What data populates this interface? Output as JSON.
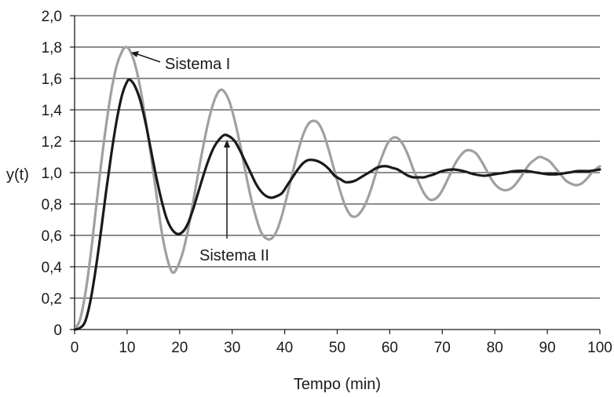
{
  "chart_data": {
    "type": "line",
    "xlabel": "Tempo (min)",
    "ylabel": "y(t)",
    "xlim": [
      0,
      100
    ],
    "ylim": [
      0,
      2.0
    ],
    "x_ticks": [
      0,
      10,
      20,
      30,
      40,
      50,
      60,
      70,
      80,
      90,
      100
    ],
    "x_tick_labels": [
      "0",
      "10",
      "20",
      "30",
      "40",
      "50",
      "60",
      "70",
      "80",
      "90",
      "100"
    ],
    "y_ticks": [
      0,
      0.2,
      0.4,
      0.6,
      0.8,
      1.0,
      1.2,
      1.4,
      1.6,
      1.8,
      2.0
    ],
    "y_tick_labels": [
      "0",
      "0,2",
      "0,4",
      "0,6",
      "0,8",
      "1,0",
      "1,2",
      "1,4",
      "1,6",
      "1,8",
      "2,0"
    ],
    "grid": "horizontal",
    "series": [
      {
        "name": "Sistema I",
        "color": "#a0a0a0",
        "points": [
          [
            0,
            0
          ],
          [
            1,
            0.06
          ],
          [
            2,
            0.22
          ],
          [
            3,
            0.46
          ],
          [
            4,
            0.75
          ],
          [
            5,
            1.04
          ],
          [
            6,
            1.3
          ],
          [
            7,
            1.52
          ],
          [
            8,
            1.68
          ],
          [
            9,
            1.77
          ],
          [
            9.7,
            1.8
          ],
          [
            10.5,
            1.78
          ],
          [
            11.5,
            1.69
          ],
          [
            12.5,
            1.54
          ],
          [
            13.5,
            1.34
          ],
          [
            14.5,
            1.12
          ],
          [
            15.5,
            0.88
          ],
          [
            16.5,
            0.64
          ],
          [
            17.5,
            0.47
          ],
          [
            18.5,
            0.37
          ],
          [
            19.3,
            0.38
          ],
          [
            20.5,
            0.48
          ],
          [
            21.5,
            0.62
          ],
          [
            22.5,
            0.8
          ],
          [
            23.5,
            0.99
          ],
          [
            24.5,
            1.17
          ],
          [
            25.5,
            1.33
          ],
          [
            26.5,
            1.45
          ],
          [
            27.5,
            1.52
          ],
          [
            28.4,
            1.52
          ],
          [
            29.5,
            1.45
          ],
          [
            30.5,
            1.33
          ],
          [
            31.5,
            1.18
          ],
          [
            32.5,
            1.01
          ],
          [
            33.5,
            0.85
          ],
          [
            34.5,
            0.72
          ],
          [
            35.5,
            0.62
          ],
          [
            36.5,
            0.58
          ],
          [
            37.5,
            0.58
          ],
          [
            38.5,
            0.63
          ],
          [
            39.5,
            0.73
          ],
          [
            40.5,
            0.86
          ],
          [
            41.5,
            1.0
          ],
          [
            42.5,
            1.13
          ],
          [
            43.5,
            1.24
          ],
          [
            44.5,
            1.31
          ],
          [
            45.5,
            1.33
          ],
          [
            46.5,
            1.31
          ],
          [
            47.5,
            1.24
          ],
          [
            48.5,
            1.13
          ],
          [
            49.5,
            1.01
          ],
          [
            50.5,
            0.89
          ],
          [
            51.5,
            0.79
          ],
          [
            52.5,
            0.73
          ],
          [
            53.5,
            0.72
          ],
          [
            54.5,
            0.75
          ],
          [
            55.5,
            0.81
          ],
          [
            56.5,
            0.9
          ],
          [
            57.5,
            1.01
          ],
          [
            58.5,
            1.1
          ],
          [
            59.5,
            1.18
          ],
          [
            60.5,
            1.22
          ],
          [
            61.5,
            1.22
          ],
          [
            62.5,
            1.18
          ],
          [
            63.5,
            1.11
          ],
          [
            64.5,
            1.02
          ],
          [
            65.5,
            0.94
          ],
          [
            66.5,
            0.87
          ],
          [
            67.5,
            0.83
          ],
          [
            68.5,
            0.83
          ],
          [
            69.5,
            0.86
          ],
          [
            70.5,
            0.92
          ],
          [
            71.5,
            0.99
          ],
          [
            72.5,
            1.06
          ],
          [
            73.5,
            1.11
          ],
          [
            74.5,
            1.14
          ],
          [
            75.5,
            1.14
          ],
          [
            76.5,
            1.12
          ],
          [
            77.5,
            1.07
          ],
          [
            78.5,
            1.01
          ],
          [
            79.5,
            0.95
          ],
          [
            80.5,
            0.91
          ],
          [
            81.5,
            0.89
          ],
          [
            82.5,
            0.89
          ],
          [
            83.5,
            0.91
          ],
          [
            84.5,
            0.95
          ],
          [
            85.5,
            1.0
          ],
          [
            86.5,
            1.05
          ],
          [
            87.5,
            1.08
          ],
          [
            88.5,
            1.1
          ],
          [
            89.5,
            1.09
          ],
          [
            90.5,
            1.07
          ],
          [
            91.5,
            1.03
          ],
          [
            92.5,
            0.99
          ],
          [
            93.5,
            0.95
          ],
          [
            94.5,
            0.93
          ],
          [
            95.5,
            0.92
          ],
          [
            96.5,
            0.93
          ],
          [
            97.5,
            0.96
          ],
          [
            98.5,
            1.0
          ],
          [
            99.5,
            1.03
          ],
          [
            100,
            1.04
          ]
        ]
      },
      {
        "name": "Sistema II",
        "color": "#1a1a1a",
        "points": [
          [
            0,
            0
          ],
          [
            1,
            0.01
          ],
          [
            2,
            0.05
          ],
          [
            3,
            0.18
          ],
          [
            4,
            0.38
          ],
          [
            5,
            0.62
          ],
          [
            6,
            0.88
          ],
          [
            7,
            1.12
          ],
          [
            8,
            1.33
          ],
          [
            9,
            1.49
          ],
          [
            10,
            1.58
          ],
          [
            10.6,
            1.59
          ],
          [
            11.5,
            1.55
          ],
          [
            12.5,
            1.46
          ],
          [
            13.5,
            1.32
          ],
          [
            14.5,
            1.15
          ],
          [
            15.5,
            0.98
          ],
          [
            16.5,
            0.83
          ],
          [
            17.5,
            0.71
          ],
          [
            18.5,
            0.64
          ],
          [
            19.5,
            0.61
          ],
          [
            20.5,
            0.62
          ],
          [
            21.5,
            0.67
          ],
          [
            22.5,
            0.76
          ],
          [
            23.5,
            0.87
          ],
          [
            24.5,
            0.98
          ],
          [
            25.5,
            1.08
          ],
          [
            26.5,
            1.16
          ],
          [
            27.5,
            1.21
          ],
          [
            28.5,
            1.24
          ],
          [
            29.5,
            1.23
          ],
          [
            30.5,
            1.2
          ],
          [
            31.5,
            1.14
          ],
          [
            32.5,
            1.07
          ],
          [
            33.5,
            1.0
          ],
          [
            34.5,
            0.93
          ],
          [
            35.5,
            0.88
          ],
          [
            36.5,
            0.85
          ],
          [
            37.5,
            0.84
          ],
          [
            38.5,
            0.85
          ],
          [
            39.5,
            0.87
          ],
          [
            40.5,
            0.92
          ],
          [
            41.5,
            0.97
          ],
          [
            42.5,
            1.02
          ],
          [
            43.5,
            1.06
          ],
          [
            44.5,
            1.08
          ],
          [
            45.5,
            1.08
          ],
          [
            46.5,
            1.07
          ],
          [
            47.5,
            1.05
          ],
          [
            48.5,
            1.02
          ],
          [
            49.5,
            0.98
          ],
          [
            50.5,
            0.96
          ],
          [
            51.5,
            0.94
          ],
          [
            52.5,
            0.94
          ],
          [
            53.5,
            0.95
          ],
          [
            54.5,
            0.97
          ],
          [
            55.5,
            0.99
          ],
          [
            56.5,
            1.01
          ],
          [
            57.5,
            1.03
          ],
          [
            58.5,
            1.04
          ],
          [
            59.5,
            1.04
          ],
          [
            60.5,
            1.03
          ],
          [
            61.5,
            1.02
          ],
          [
            62.5,
            1.0
          ],
          [
            63.5,
            0.98
          ],
          [
            64.5,
            0.97
          ],
          [
            65.5,
            0.97
          ],
          [
            66.5,
            0.97
          ],
          [
            67.5,
            0.98
          ],
          [
            68.5,
            0.99
          ],
          [
            70,
            1.01
          ],
          [
            72,
            1.02
          ],
          [
            74,
            1.01
          ],
          [
            76,
            0.99
          ],
          [
            78,
            0.98
          ],
          [
            80,
            0.99
          ],
          [
            82,
            1.0
          ],
          [
            84,
            1.01
          ],
          [
            86,
            1.01
          ],
          [
            88,
            1.0
          ],
          [
            90,
            0.99
          ],
          [
            92,
            0.99
          ],
          [
            94,
            1.0
          ],
          [
            96,
            1.01
          ],
          [
            98,
            1.01
          ],
          [
            100,
            1.02
          ]
        ]
      }
    ],
    "annotations": [
      {
        "text": "Sistema I",
        "target": [
          9.7,
          1.8
        ]
      },
      {
        "text": "Sistema II",
        "target": [
          29,
          1.24
        ]
      }
    ]
  }
}
